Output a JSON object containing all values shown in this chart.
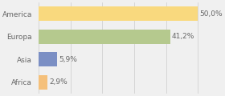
{
  "categories": [
    "America",
    "Europa",
    "Asia",
    "Africa"
  ],
  "values": [
    50.0,
    41.2,
    5.9,
    2.9
  ],
  "labels": [
    "50,0%",
    "41,2%",
    "5,9%",
    "2,9%"
  ],
  "bar_colors": [
    "#f9d97e",
    "#b5c98e",
    "#7b8fc4",
    "#f5c07a"
  ],
  "background_color": "#f0f0f0",
  "xlim": [
    0,
    55
  ],
  "bar_height": 0.62,
  "label_fontsize": 6.5,
  "category_fontsize": 6.5,
  "grid_color": "#cccccc",
  "text_color": "#666666"
}
